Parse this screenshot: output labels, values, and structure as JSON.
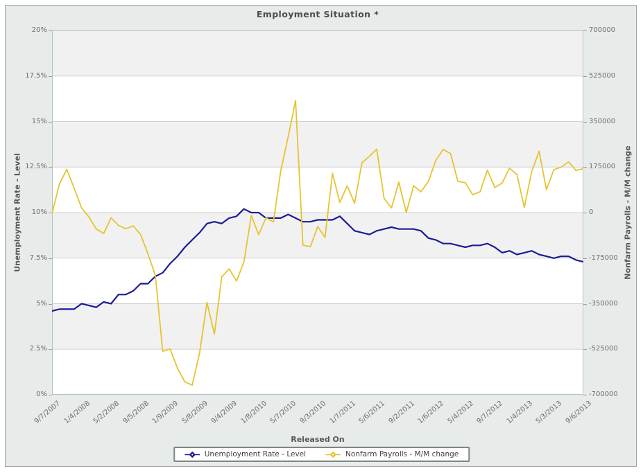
{
  "window": {
    "title": "Employment Situation *"
  },
  "colors": {
    "panel_background": "#e7ebea",
    "panel_border": "#9ba3a3",
    "unemployment_line": "#1b1b96",
    "payrolls_line": "#e5c42f",
    "gridline": "#d2d2d2",
    "plot_frame": "#b9bfbf",
    "band_shaded": "#f1f1f1",
    "band_plain": "#ffffff",
    "tick_text": "#6e6e6e",
    "title_text": "#4d4d4d"
  },
  "legend": {
    "items": [
      {
        "label": "Unemployment Rate - Level",
        "color": "#1b1b96",
        "marker": "diamond"
      },
      {
        "label": "Nonfarm Payrolls - M/M change",
        "color": "#e5c42f",
        "marker": "diamond"
      }
    ]
  },
  "chart_data": {
    "type": "line",
    "title": "Employment Situation *",
    "grid": true,
    "legend_position": "bottom",
    "band_colors": [
      "#f1f1f1",
      "#ffffff"
    ],
    "grid_color": "#d2d2d2",
    "frame_color": "#b9bfbf",
    "x_axis": {
      "title": "Released On",
      "label_every": 4
    },
    "y_left": {
      "title": "Unemployment Rate - Level",
      "min": 0,
      "max": 20,
      "tick_labels": [
        "20%",
        "17.5%",
        "15%",
        "12.5%",
        "10%",
        "7.5%",
        "5%",
        "2.5%",
        "0%"
      ]
    },
    "y_right": {
      "title": "Nonfarm Payrolls - M/M change",
      "min": -700000,
      "max": 700000,
      "tick_labels": [
        "700000",
        "525000",
        "350000",
        "175000",
        "0",
        "-175000",
        "-350000",
        "-525000",
        "-700000"
      ]
    },
    "x": [
      "9/7/2007",
      "10/5/2007",
      "11/2/2007",
      "12/7/2007",
      "1/4/2008",
      "2/1/2008",
      "3/7/2008",
      "4/4/2008",
      "5/2/2008",
      "6/6/2008",
      "7/3/2008",
      "8/1/2008",
      "9/5/2008",
      "10/3/2008",
      "11/7/2008",
      "12/5/2008",
      "1/9/2009",
      "2/6/2009",
      "3/6/2009",
      "4/3/2009",
      "5/8/2009",
      "6/5/2009",
      "7/2/2009",
      "8/7/2009",
      "9/4/2009",
      "10/2/2009",
      "11/6/2009",
      "12/4/2009",
      "1/8/2010",
      "2/5/2010",
      "3/5/2010",
      "4/2/2010",
      "5/7/2010",
      "6/4/2010",
      "7/2/2010",
      "8/6/2010",
      "9/3/2010",
      "10/8/2010",
      "11/5/2010",
      "12/3/2010",
      "1/7/2011",
      "2/4/2011",
      "3/4/2011",
      "4/1/2011",
      "5/6/2011",
      "6/3/2011",
      "7/8/2011",
      "8/5/2011",
      "9/2/2011",
      "10/7/2011",
      "11/4/2011",
      "12/2/2011",
      "1/6/2012",
      "2/3/2012",
      "3/9/2012",
      "4/6/2012",
      "5/4/2012",
      "6/1/2012",
      "7/6/2012",
      "8/3/2012",
      "9/7/2012",
      "10/5/2012",
      "11/2/2012",
      "12/7/2012",
      "1/4/2013",
      "2/1/2013",
      "3/8/2013",
      "4/5/2013",
      "5/3/2013",
      "6/7/2013",
      "7/5/2013",
      "8/2/2013",
      "9/6/2013"
    ],
    "series": [
      {
        "name": "Unemployment Rate - Level",
        "axis": "left",
        "color": "#1b1b96",
        "stroke_width": 2.2,
        "values": [
          4.6,
          4.7,
          4.7,
          4.7,
          5.0,
          4.9,
          4.8,
          5.1,
          5.0,
          5.5,
          5.5,
          5.7,
          6.1,
          6.1,
          6.5,
          6.7,
          7.2,
          7.6,
          8.1,
          8.5,
          8.9,
          9.4,
          9.5,
          9.4,
          9.7,
          9.8,
          10.2,
          10.0,
          10.0,
          9.7,
          9.7,
          9.7,
          9.9,
          9.7,
          9.5,
          9.5,
          9.6,
          9.6,
          9.6,
          9.8,
          9.4,
          9.0,
          8.9,
          8.8,
          9.0,
          9.1,
          9.2,
          9.1,
          9.1,
          9.1,
          9.0,
          8.6,
          8.5,
          8.3,
          8.3,
          8.2,
          8.1,
          8.2,
          8.2,
          8.3,
          8.1,
          7.8,
          7.9,
          7.7,
          7.8,
          7.9,
          7.7,
          7.6,
          7.5,
          7.6,
          7.6,
          7.4,
          7.3
        ]
      },
      {
        "name": "Nonfarm Payrolls - M/M change",
        "axis": "right",
        "color": "#e5c42f",
        "stroke_width": 1.8,
        "values": [
          -4000,
          110000,
          166000,
          94000,
          18000,
          -17000,
          -63000,
          -80000,
          -20000,
          -49000,
          -62000,
          -51000,
          -84000,
          -159000,
          -240000,
          -533000,
          -524000,
          -598000,
          -651000,
          -663000,
          -539000,
          -345000,
          -467000,
          -247000,
          -216000,
          -263000,
          -190000,
          -11000,
          -85000,
          -20000,
          -36000,
          162000,
          290000,
          431000,
          -125000,
          -131000,
          -54000,
          -95000,
          151000,
          39000,
          103000,
          36000,
          192000,
          216000,
          244000,
          54000,
          18000,
          117000,
          0,
          103000,
          80000,
          120000,
          200000,
          243000,
          227000,
          120000,
          115000,
          69000,
          80000,
          163000,
          96000,
          114000,
          171000,
          146000,
          20000,
          157000,
          236000,
          88000,
          165000,
          175000,
          195000,
          162000,
          169000
        ]
      }
    ]
  }
}
